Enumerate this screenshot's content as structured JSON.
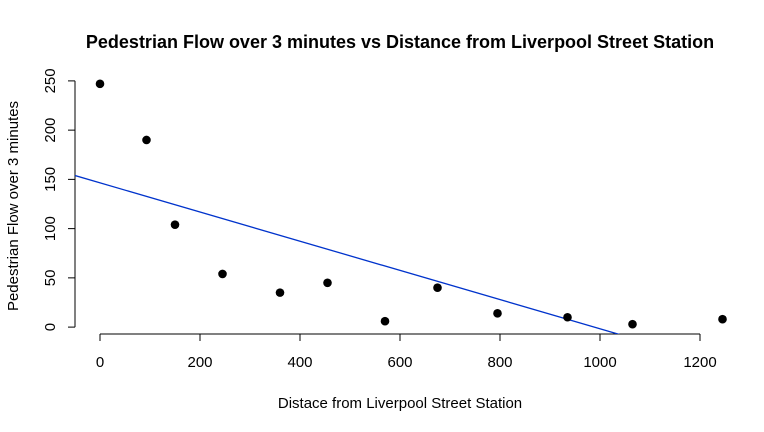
{
  "chart_data": {
    "type": "scatter",
    "title": "Pedestrian Flow over 3 minutes vs Distance from Liverpool Street Station",
    "xlabel": "Distace from Liverpool Street Station",
    "ylabel": "Pedestrian Flow over 3 minutes",
    "xlim": [
      -50,
      1250
    ],
    "ylim": [
      -7,
      257
    ],
    "x_ticks": [
      "0",
      "200",
      "400",
      "600",
      "800",
      "1000",
      "1200"
    ],
    "y_ticks": [
      "0",
      "50",
      "100",
      "150",
      "200",
      "250"
    ],
    "series": [
      {
        "x": [
          0,
          93,
          150,
          245,
          360,
          455,
          570,
          675,
          795,
          935,
          1065,
          1245
        ],
        "y": [
          247,
          190,
          104,
          54,
          35,
          45,
          6,
          40,
          14,
          10,
          3,
          8
        ]
      }
    ],
    "regression_line": {
      "intercept": 146.5,
      "slope": -0.1482
    },
    "point_color": "#000000",
    "line_color": "#0033cc",
    "grid": false,
    "legend": "none"
  }
}
